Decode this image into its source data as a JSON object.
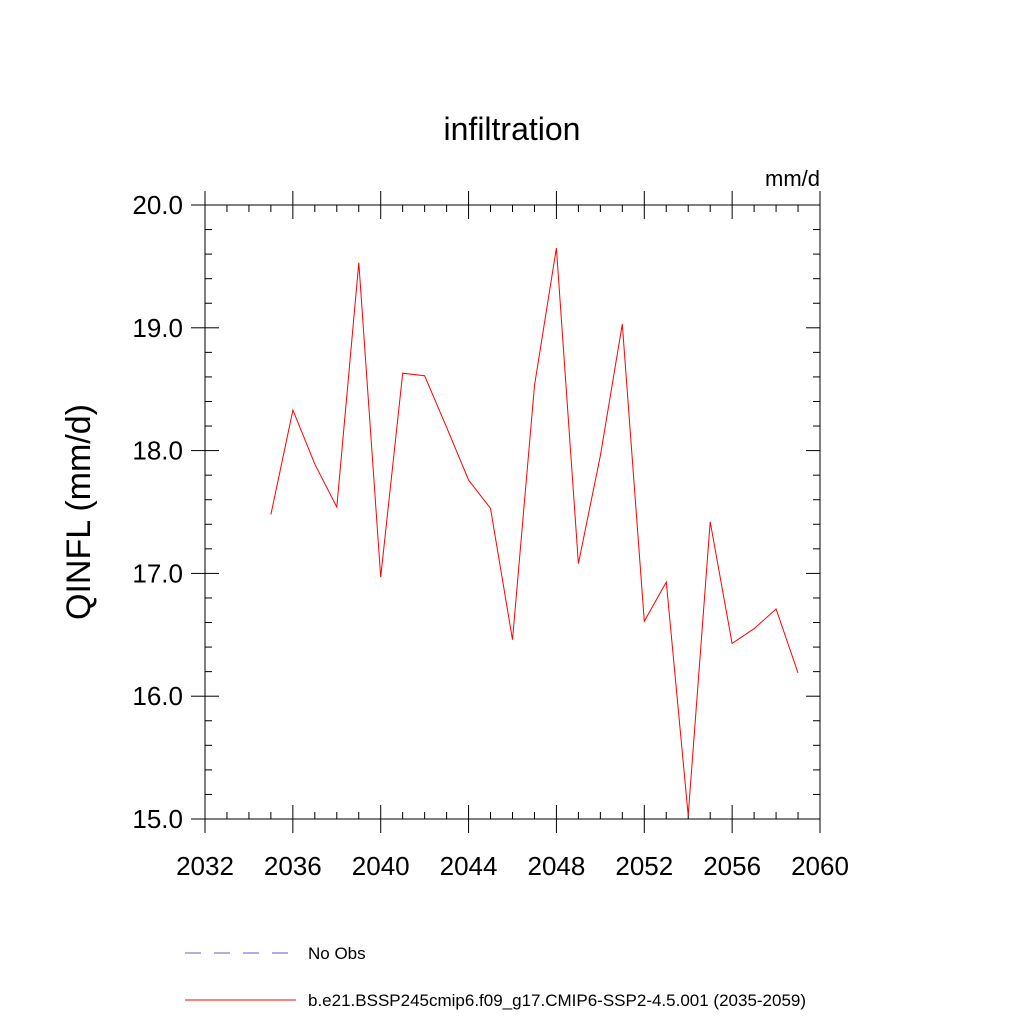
{
  "chart_data": {
    "type": "line",
    "title": "infiltration",
    "units": "mm/d",
    "xlabel": "",
    "ylabel": "QINFL  (mm/d)",
    "xlim": [
      2032,
      2060
    ],
    "ylim": [
      15.0,
      20.0
    ],
    "xticks": [
      "2032",
      "2036",
      "2040",
      "2044",
      "2048",
      "2052",
      "2056",
      "2060"
    ],
    "yticks": [
      "15.0",
      "16.0",
      "17.0",
      "18.0",
      "19.0",
      "20.0"
    ],
    "grid": false,
    "legend_position": "bottom",
    "series": [
      {
        "name": "b.e21.BSSP245cmip6.f09_g17.CMIP6-SSP2-4.5.001 (2035-2059)",
        "color": "#ff0000",
        "style": "solid",
        "x": [
          2035,
          2036,
          2037,
          2038,
          2039,
          2040,
          2041,
          2042,
          2043,
          2044,
          2045,
          2046,
          2047,
          2048,
          2049,
          2050,
          2051,
          2052,
          2053,
          2054,
          2055,
          2056,
          2057,
          2058,
          2059
        ],
        "y": [
          17.48,
          18.33,
          17.89,
          17.54,
          19.53,
          16.97,
          18.63,
          18.61,
          18.19,
          17.76,
          17.53,
          16.46,
          18.53,
          19.65,
          17.08,
          17.96,
          19.03,
          16.61,
          16.93,
          15.03,
          17.42,
          16.43,
          16.55,
          16.71,
          16.19
        ]
      }
    ],
    "legend": [
      {
        "label": "No Obs",
        "color": "#6a5acd",
        "style": "dashed"
      },
      {
        "label": "b.e21.BSSP245cmip6.f09_g17.CMIP6-SSP2-4.5.001 (2035-2059)",
        "color": "#ff0000",
        "style": "solid"
      }
    ]
  }
}
